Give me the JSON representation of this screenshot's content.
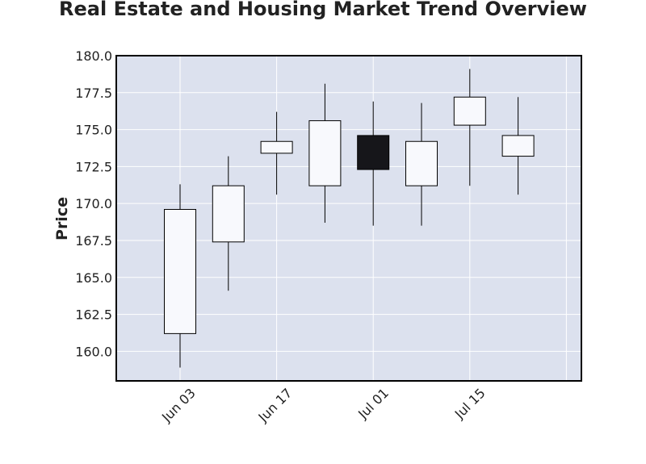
{
  "chart_data": {
    "type": "candlestick",
    "title": "Real Estate and Housing Market Trend Overview",
    "xlabel": "",
    "ylabel": "Price",
    "ylim": [
      158.0,
      180.0
    ],
    "yticks": [
      "160.0",
      "162.5",
      "165.0",
      "167.5",
      "170.0",
      "172.5",
      "175.0",
      "177.5",
      "180.0"
    ],
    "xticks": [
      "Jun 03",
      "Jun 17",
      "Jul 01",
      "Jul 15"
    ],
    "grid": true,
    "colors": {
      "background": "#dce1ee",
      "up": "#f8f9fd",
      "down": "#16161a",
      "edge": "#000000",
      "grid": "#ffffff"
    },
    "candles": [
      {
        "date": "Jun 03",
        "open": 161.2,
        "high": 171.3,
        "low": 158.9,
        "close": 169.6
      },
      {
        "date": "Jun 10",
        "open": 167.4,
        "high": 173.2,
        "low": 164.1,
        "close": 171.2
      },
      {
        "date": "Jun 17",
        "open": 173.4,
        "high": 176.2,
        "low": 170.6,
        "close": 174.2
      },
      {
        "date": "Jun 24",
        "open": 171.2,
        "high": 178.1,
        "low": 168.7,
        "close": 175.6
      },
      {
        "date": "Jul 01",
        "open": 174.6,
        "high": 176.9,
        "low": 168.5,
        "close": 172.3
      },
      {
        "date": "Jul 08",
        "open": 171.2,
        "high": 176.8,
        "low": 168.5,
        "close": 174.2
      },
      {
        "date": "Jul 15",
        "open": 175.3,
        "high": 179.1,
        "low": 171.2,
        "close": 177.2
      },
      {
        "date": "Jul 22",
        "open": 173.2,
        "high": 177.2,
        "low": 170.6,
        "close": 174.6
      }
    ]
  }
}
